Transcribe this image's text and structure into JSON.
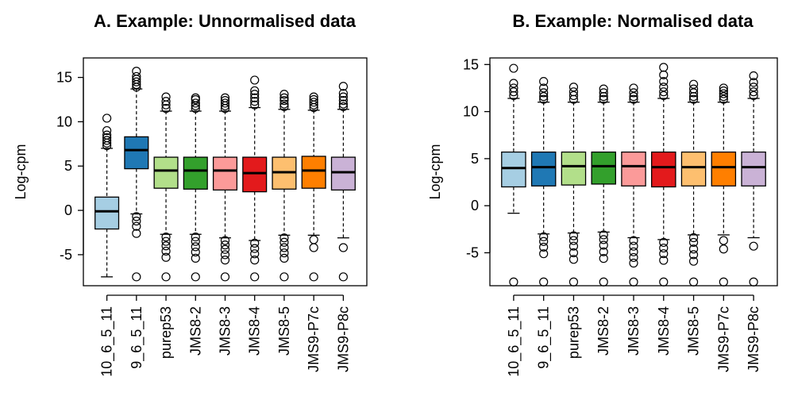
{
  "chart_data": [
    {
      "type": "boxplot",
      "title": "A. Example: Unnormalised data",
      "ylabel": "Log-cpm",
      "ylim": [
        -8.5,
        17.2
      ],
      "yticks": [
        -5,
        0,
        5,
        10,
        15
      ],
      "categories": [
        "10_6_5_11",
        "9_6_5_11",
        "purep53",
        "JMS8-2",
        "JMS8-3",
        "JMS8-4",
        "JMS8-5",
        "JMS9-P7c",
        "JMS9-P8c"
      ],
      "colors": [
        "#a6cee3",
        "#1f78b4",
        "#b2df8a",
        "#33a02c",
        "#fb9a99",
        "#e31a1c",
        "#fdbf6f",
        "#ff7f00",
        "#cab2d6"
      ],
      "boxes": [
        {
          "whisker_low": -7.5,
          "q1": -2.1,
          "median": -0.1,
          "q3": 1.5,
          "whisker_high": 7.0,
          "outliers_high": [
            7.3,
            7.6,
            7.9,
            8.2,
            8.5,
            9.0,
            10.4
          ],
          "outliers_low": []
        },
        {
          "whisker_low": -0.4,
          "q1": 4.7,
          "median": 6.8,
          "q3": 8.3,
          "whisker_high": 13.7,
          "outliers_high": [
            13.9,
            14.2,
            14.5,
            14.8,
            15.1,
            15.7
          ],
          "outliers_low": [
            -0.7,
            -1.2,
            -1.8,
            -2.6,
            -7.5
          ]
        },
        {
          "whisker_low": -2.7,
          "q1": 2.5,
          "median": 4.5,
          "q3": 6.0,
          "whisker_high": 11.2,
          "outliers_high": [
            11.5,
            11.9,
            12.3,
            12.8
          ],
          "outliers_low": [
            -3.0,
            -3.5,
            -4.0,
            -4.6,
            -5.3,
            -7.5
          ]
        },
        {
          "whisker_low": -2.7,
          "q1": 2.4,
          "median": 4.5,
          "q3": 6.0,
          "whisker_high": 11.2,
          "outliers_high": [
            11.5,
            11.8,
            12.1,
            12.5,
            12.7
          ],
          "outliers_low": [
            -3.0,
            -3.5,
            -4.1,
            -4.7,
            -5.4,
            -7.5
          ]
        },
        {
          "whisker_low": -3.1,
          "q1": 2.3,
          "median": 4.5,
          "q3": 6.0,
          "whisker_high": 11.2,
          "outliers_high": [
            11.5,
            11.8,
            12.1,
            12.4,
            12.7
          ],
          "outliers_low": [
            -3.4,
            -3.9,
            -4.4,
            -5.0,
            -5.6,
            -7.5
          ]
        },
        {
          "whisker_low": -3.4,
          "q1": 2.1,
          "median": 4.2,
          "q3": 6.0,
          "whisker_high": 11.6,
          "outliers_high": [
            11.9,
            12.3,
            12.7,
            13.1,
            13.5,
            14.7
          ],
          "outliers_low": [
            -3.7,
            -4.3,
            -4.9,
            -5.6,
            -7.5
          ]
        },
        {
          "whisker_low": -2.8,
          "q1": 2.4,
          "median": 4.3,
          "q3": 6.0,
          "whisker_high": 11.4,
          "outliers_high": [
            11.7,
            12.0,
            12.4,
            12.7,
            13.1
          ],
          "outliers_low": [
            -3.1,
            -3.6,
            -4.2,
            -4.8,
            -5.4,
            -7.5
          ]
        },
        {
          "whisker_low": -2.8,
          "q1": 2.5,
          "median": 4.5,
          "q3": 6.1,
          "whisker_high": 11.3,
          "outliers_high": [
            11.6,
            11.9,
            12.2,
            12.5,
            12.8
          ],
          "outliers_low": [
            -3.3,
            -4.2,
            -7.5
          ]
        },
        {
          "whisker_low": -3.1,
          "q1": 2.3,
          "median": 4.3,
          "q3": 6.0,
          "whisker_high": 11.4,
          "outliers_high": [
            11.7,
            12.0,
            12.4,
            12.8,
            13.2,
            14.0
          ],
          "outliers_low": [
            -4.2,
            -7.5
          ]
        }
      ]
    },
    {
      "type": "boxplot",
      "title": "B. Example: Normalised data",
      "ylabel": "Log-cpm",
      "ylim": [
        -8.5,
        15.7
      ],
      "yticks": [
        -5,
        0,
        5,
        10,
        15
      ],
      "categories": [
        "10_6_5_11",
        "9_6_5_11",
        "purep53",
        "JMS8-2",
        "JMS8-3",
        "JMS8-4",
        "JMS8-5",
        "JMS9-P7c",
        "JMS9-P8c"
      ],
      "colors": [
        "#a6cee3",
        "#1f78b4",
        "#b2df8a",
        "#33a02c",
        "#fb9a99",
        "#e31a1c",
        "#fdbf6f",
        "#ff7f00",
        "#cab2d6"
      ],
      "boxes": [
        {
          "whisker_low": -0.8,
          "q1": 2.0,
          "median": 4.0,
          "q3": 5.7,
          "whisker_high": 11.4,
          "outliers_high": [
            11.7,
            12.1,
            12.5,
            13.0,
            14.6
          ],
          "outliers_low": [
            -8.1
          ]
        },
        {
          "whisker_low": -3.0,
          "q1": 2.1,
          "median": 4.1,
          "q3": 5.7,
          "whisker_high": 11.0,
          "outliers_high": [
            11.3,
            11.6,
            12.0,
            12.5,
            13.2
          ],
          "outliers_low": [
            -3.3,
            -3.8,
            -4.4,
            -5.1,
            -8.1
          ]
        },
        {
          "whisker_low": -2.9,
          "q1": 2.2,
          "median": 4.2,
          "q3": 5.7,
          "whisker_high": 11.0,
          "outliers_high": [
            11.3,
            11.7,
            12.1,
            12.6
          ],
          "outliers_low": [
            -3.2,
            -3.7,
            -4.3,
            -5.0,
            -5.7,
            -8.1
          ]
        },
        {
          "whisker_low": -2.8,
          "q1": 2.3,
          "median": 4.2,
          "q3": 5.7,
          "whisker_high": 11.0,
          "outliers_high": [
            11.3,
            11.6,
            12.0,
            12.4
          ],
          "outliers_low": [
            -3.1,
            -3.6,
            -4.2,
            -4.9,
            -5.6,
            -8.1
          ]
        },
        {
          "whisker_low": -3.4,
          "q1": 2.1,
          "median": 4.2,
          "q3": 5.7,
          "whisker_high": 11.0,
          "outliers_high": [
            11.3,
            11.6,
            12.0,
            12.5
          ],
          "outliers_low": [
            -3.7,
            -4.3,
            -4.9,
            -5.5,
            -6.1,
            -8.1
          ]
        },
        {
          "whisker_low": -3.6,
          "q1": 2.0,
          "median": 4.1,
          "q3": 5.7,
          "whisker_high": 11.4,
          "outliers_high": [
            11.7,
            12.1,
            12.6,
            13.2,
            13.9,
            14.7
          ],
          "outliers_low": [
            -3.9,
            -4.5,
            -5.1,
            -5.8,
            -8.1
          ]
        },
        {
          "whisker_low": -3.1,
          "q1": 2.1,
          "median": 4.1,
          "q3": 5.7,
          "whisker_high": 11.0,
          "outliers_high": [
            11.3,
            11.6,
            12.0,
            12.4,
            12.9
          ],
          "outliers_low": [
            -3.4,
            -3.9,
            -4.6,
            -5.2,
            -5.9,
            -8.1
          ]
        },
        {
          "whisker_low": -3.1,
          "q1": 2.1,
          "median": 4.1,
          "q3": 5.7,
          "whisker_high": 11.0,
          "outliers_high": [
            11.3,
            11.6,
            11.9,
            12.2,
            12.5
          ],
          "outliers_low": [
            -3.7,
            -4.6,
            -8.1
          ]
        },
        {
          "whisker_low": -3.4,
          "q1": 2.1,
          "median": 4.1,
          "q3": 5.7,
          "whisker_high": 11.4,
          "outliers_high": [
            11.7,
            12.1,
            12.6,
            13.1,
            13.8
          ],
          "outliers_low": [
            -4.3,
            -8.1
          ]
        }
      ]
    }
  ]
}
